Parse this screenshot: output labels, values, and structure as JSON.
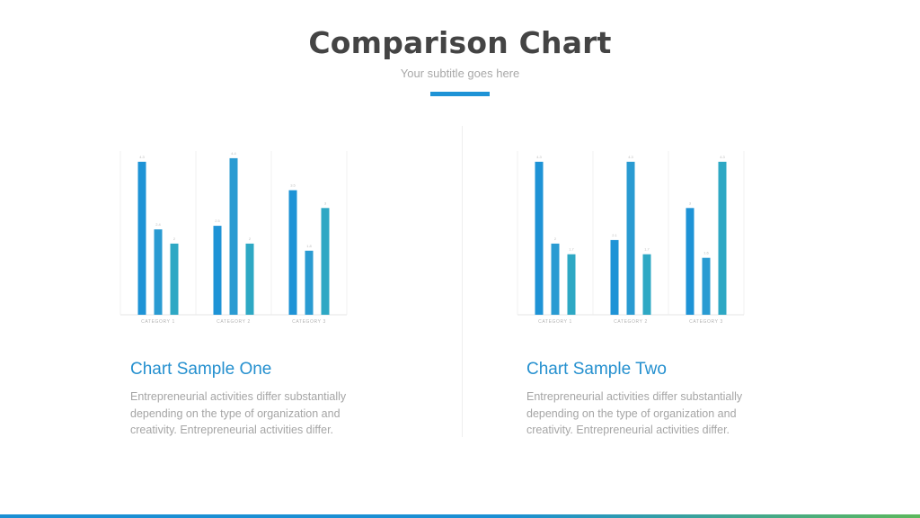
{
  "header": {
    "title": "Comparison Chart",
    "subtitle": "Your subtitle goes here"
  },
  "colors": {
    "accent": "#1e93d6",
    "bar_blue": "#1e93d6",
    "bar_mid": "#2a9bd2",
    "bar_teal": "#2ea8c4",
    "caption_title": "#2590cf",
    "bottom_bar_start": "#1b8fd3",
    "bottom_bar_end": "#5cb85c"
  },
  "chart_data": [
    {
      "type": "bar",
      "categories": [
        "CATEGORY 1",
        "CATEGORY 2",
        "CATEGORY 3"
      ],
      "series": [
        {
          "values": [
            4.3,
            2.5,
            3.5
          ]
        },
        {
          "values": [
            2.4,
            4.4,
            1.8
          ]
        },
        {
          "values": [
            2.0,
            2.0,
            3.0
          ]
        }
      ],
      "ylim": [
        0,
        4.6
      ],
      "grid": "vertical"
    },
    {
      "type": "bar",
      "categories": [
        "CATEGORY 1",
        "CATEGORY 2",
        "CATEGORY 3"
      ],
      "series": [
        {
          "values": [
            4.3,
            2.1,
            3.0
          ]
        },
        {
          "values": [
            2.0,
            4.3,
            1.6
          ]
        },
        {
          "values": [
            1.7,
            1.7,
            4.3
          ]
        }
      ],
      "ylim": [
        0,
        4.6
      ],
      "grid": "vertical"
    }
  ],
  "captions": [
    {
      "title": "Chart Sample One",
      "text": "Entrepreneurial activities differ substantially depending on the type of organization and creativity. Entrepreneurial activities differ."
    },
    {
      "title": "Chart Sample Two",
      "text": "Entrepreneurial activities differ substantially depending on the type of organization and creativity. Entrepreneurial activities differ."
    }
  ]
}
